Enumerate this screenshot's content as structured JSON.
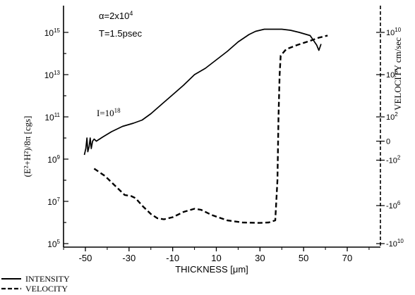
{
  "chart_data": {
    "type": "line",
    "xlabel": "THICKNESS [μm]",
    "ylabel_left": "(E²+H²)/8π [cgs]",
    "ylabel_right": "VELOCITY cm/sec",
    "xlim": [
      -55,
      70
    ],
    "ylim_left_log10": [
      5,
      16
    ],
    "x_ticks": [
      -50,
      -30,
      -10,
      10,
      30,
      50,
      70
    ],
    "x_tick_labels": [
      "-50",
      "-30",
      "-10",
      "10",
      "30",
      "50",
      "70"
    ],
    "left_ticks": [
      {
        "mantissa": "10",
        "exp": "15",
        "log": 15
      },
      {
        "mantissa": "10",
        "exp": "13",
        "log": 13
      },
      {
        "mantissa": "10",
        "exp": "11",
        "log": 11
      },
      {
        "mantissa": "10",
        "exp": "9",
        "log": 9
      },
      {
        "mantissa": "10",
        "exp": "7",
        "log": 7
      },
      {
        "mantissa": "10",
        "exp": "5",
        "log": 5
      }
    ],
    "right_ticks": [
      {
        "mantissa": "10",
        "exp": "10",
        "pos": 15
      },
      {
        "mantissa": "10",
        "exp": "6",
        "pos": 13
      },
      {
        "mantissa": "10",
        "exp": "2",
        "pos": 11
      },
      {
        "mantissa": "0",
        "exp": "",
        "pos": 9.85
      },
      {
        "mantissa": "-10",
        "exp": "2",
        "pos": 8.95
      },
      {
        "mantissa": "-10",
        "exp": "6",
        "pos": 6.8
      },
      {
        "mantissa": "-10",
        "exp": "10",
        "pos": 5
      }
    ],
    "annotations": {
      "alpha_label": "α=2x10",
      "alpha_exp": "4",
      "time_label": "T=1.5psec",
      "intensity_label": "I=10",
      "intensity_exp": "18"
    },
    "legend": {
      "placement": "bottom-left",
      "entries": [
        {
          "label": "INTENSITY",
          "style": "solid"
        },
        {
          "label": "VELOCITY",
          "style": "dashed"
        }
      ]
    },
    "series": [
      {
        "name": "INTENSITY",
        "axis": "left",
        "style": "solid",
        "points": [
          [
            -50.5,
            9.2
          ],
          [
            -49.8,
            9.5
          ],
          [
            -49.3,
            10.0
          ],
          [
            -48.9,
            9.35
          ],
          [
            -48.3,
            9.6
          ],
          [
            -47.8,
            10.0
          ],
          [
            -47.3,
            9.5
          ],
          [
            -46.7,
            9.85
          ],
          [
            -46.0,
            9.95
          ],
          [
            -45.0,
            9.85
          ],
          [
            -42.0,
            10.05
          ],
          [
            -38.0,
            10.3
          ],
          [
            -33.0,
            10.55
          ],
          [
            -28.0,
            10.7
          ],
          [
            -24.0,
            10.85
          ],
          [
            -20.0,
            11.15
          ],
          [
            -15.0,
            11.6
          ],
          [
            -10.0,
            12.05
          ],
          [
            -5.0,
            12.5
          ],
          [
            0.0,
            13.0
          ],
          [
            5.0,
            13.3
          ],
          [
            10.0,
            13.7
          ],
          [
            15.0,
            14.1
          ],
          [
            20.0,
            14.55
          ],
          [
            25.0,
            14.9
          ],
          [
            28.0,
            15.05
          ],
          [
            32.0,
            15.15
          ],
          [
            40.0,
            15.15
          ],
          [
            44.0,
            15.1
          ],
          [
            48.0,
            15.0
          ],
          [
            53.0,
            14.85
          ],
          [
            56.0,
            14.4
          ],
          [
            57.0,
            14.15
          ],
          [
            58.0,
            14.45
          ]
        ]
      },
      {
        "name": "VELOCITY",
        "axis": "right",
        "style": "dashed",
        "points": [
          [
            -46.0,
            8.55
          ],
          [
            -41.0,
            8.2
          ],
          [
            -38.0,
            7.9
          ],
          [
            -35.0,
            7.6
          ],
          [
            -32.0,
            7.3
          ],
          [
            -29.0,
            7.25
          ],
          [
            -27.0,
            7.15
          ],
          [
            -24.0,
            6.8
          ],
          [
            -20.0,
            6.4
          ],
          [
            -17.0,
            6.2
          ],
          [
            -14.0,
            6.15
          ],
          [
            -10.0,
            6.25
          ],
          [
            -5.0,
            6.5
          ],
          [
            0.0,
            6.65
          ],
          [
            3.0,
            6.6
          ],
          [
            8.0,
            6.35
          ],
          [
            15.0,
            6.1
          ],
          [
            22.0,
            6.0
          ],
          [
            30.0,
            5.98
          ],
          [
            34.0,
            6.0
          ],
          [
            37.0,
            6.1
          ],
          [
            38.0,
            8.0
          ],
          [
            38.5,
            11.0
          ],
          [
            39.0,
            13.0
          ],
          [
            39.5,
            13.9
          ],
          [
            42.0,
            14.2
          ],
          [
            47.0,
            14.4
          ],
          [
            53.0,
            14.6
          ],
          [
            57.0,
            14.75
          ],
          [
            61.0,
            14.85
          ]
        ]
      }
    ]
  }
}
